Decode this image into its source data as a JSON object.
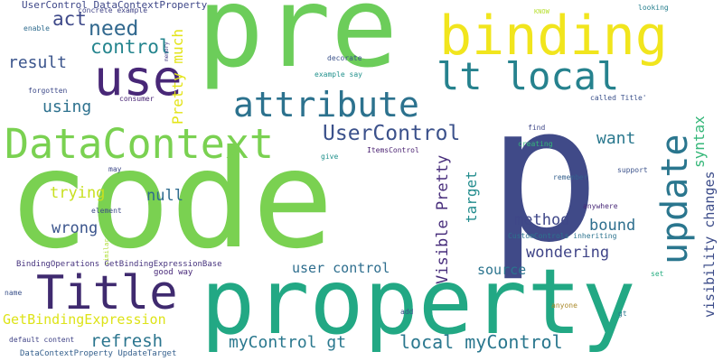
{
  "cloud": {
    "words": [
      {
        "text": "code",
        "color": "#7ad151"
      },
      {
        "text": "p",
        "color": "#404a88"
      },
      {
        "text": "pre",
        "color": "#6ccd5a"
      },
      {
        "text": "property",
        "color": "#22a884"
      },
      {
        "text": "binding",
        "color": "#f1e51d"
      },
      {
        "text": "Title",
        "color": "#3f2a6f"
      },
      {
        "text": "DataContext",
        "color": "#7ad151"
      },
      {
        "text": "use",
        "color": "#482777"
      },
      {
        "text": "update",
        "color": "#2a768e"
      },
      {
        "text": "lt local",
        "color": "#26828e"
      },
      {
        "text": "attribute",
        "color": "#2c728e"
      },
      {
        "text": "UserControl",
        "color": "#3b518b"
      },
      {
        "text": "need",
        "color": "#31688e"
      },
      {
        "text": "act",
        "color": "#3e4989"
      },
      {
        "text": "control",
        "color": "#25858e"
      },
      {
        "text": "result",
        "color": "#3a548c"
      },
      {
        "text": "using",
        "color": "#2d718e"
      },
      {
        "text": "Pretty much",
        "color": "#e3e418"
      },
      {
        "text": "want",
        "color": "#2a788e"
      },
      {
        "text": "syntax",
        "color": "#35b779"
      },
      {
        "text": "visibility changes",
        "color": "#3d4d8a"
      },
      {
        "text": "Visible Pretty",
        "color": "#472d7b"
      },
      {
        "text": "target",
        "color": "#228c8d"
      },
      {
        "text": "trying",
        "color": "#c8e020"
      },
      {
        "text": "null",
        "color": "#2f6b8e"
      },
      {
        "text": "wrong",
        "color": "#3a548c"
      },
      {
        "text": "method",
        "color": "#3f4788"
      },
      {
        "text": "bound",
        "color": "#2e6f8e"
      },
      {
        "text": "wondering",
        "color": "#404588"
      },
      {
        "text": "user control",
        "color": "#2e6e8e"
      },
      {
        "text": "source",
        "color": "#2b748e"
      },
      {
        "text": "GetBindingExpression",
        "color": "#dde318"
      },
      {
        "text": "refresh",
        "color": "#2b758e"
      },
      {
        "text": "myControl gt",
        "color": "#2a788e"
      },
      {
        "text": "local myControl",
        "color": "#2a778e"
      },
      {
        "text": "UserControl DataContextProperty",
        "color": "#3f4889"
      },
      {
        "text": "concrete example",
        "color": "#414487"
      },
      {
        "text": "KNOW",
        "color": "#b5de2b"
      },
      {
        "text": "looking",
        "color": "#277f8e"
      },
      {
        "text": "enable",
        "color": "#2f6c8e"
      },
      {
        "text": "memory",
        "color": "#433e85"
      },
      {
        "text": "decorate",
        "color": "#3b528b"
      },
      {
        "text": "example say",
        "color": "#21918c"
      },
      {
        "text": "forgotten",
        "color": "#3e4a89"
      },
      {
        "text": "consumer",
        "color": "#482475"
      },
      {
        "text": "called Title'",
        "color": "#3b518b"
      },
      {
        "text": "find",
        "color": "#3f4788"
      },
      {
        "text": "creating",
        "color": "#35b779"
      },
      {
        "text": "give",
        "color": "#21918c"
      },
      {
        "text": "ItemsControl",
        "color": "#481f70"
      },
      {
        "text": "may",
        "color": "#3e4989"
      },
      {
        "text": "remember",
        "color": "#34608d"
      },
      {
        "text": "support",
        "color": "#3b528b"
      },
      {
        "text": "element",
        "color": "#3e4a89"
      },
      {
        "text": "anywhere",
        "color": "#482878"
      },
      {
        "text": "CustomControls inheriting",
        "color": "#2c738e"
      },
      {
        "text": "similar",
        "color": "#addc30"
      },
      {
        "text": "BindingOperations GetBindingExpressionBase",
        "color": "#46337e"
      },
      {
        "text": "good way",
        "color": "#482979"
      },
      {
        "text": "set",
        "color": "#26ad81"
      },
      {
        "text": "name",
        "color": "#3b528b"
      },
      {
        "text": "anyone",
        "color": "#ab8a2b"
      },
      {
        "text": "add",
        "color": "#3b528b"
      },
      {
        "text": "gt",
        "color": "#2a788e"
      },
      {
        "text": "default content",
        "color": "#414487"
      },
      {
        "text": "DataContextProperty UpdateTarget",
        "color": "#35608d"
      }
    ]
  }
}
